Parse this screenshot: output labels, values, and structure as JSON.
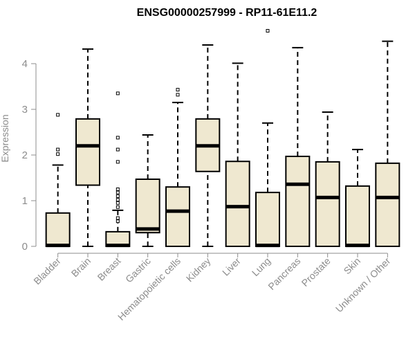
{
  "chart_data": {
    "type": "box",
    "title": "ENSG00000257999 - RP11-61E11.2",
    "xlabel": "",
    "ylabel": "Expression",
    "ylim": [
      0,
      4.7
    ],
    "yticks": [
      0,
      1,
      2,
      3,
      4
    ],
    "grid": false,
    "box_fill": "#efe8d0",
    "categories": [
      "Bladder",
      "Brain",
      "Breast",
      "Gastric",
      "Hematopoietic cells",
      "Kidney",
      "Liver",
      "Lung",
      "Pancreas",
      "Prostate",
      "Skin",
      "Unknown / Other"
    ],
    "boxes": [
      {
        "category": "Bladder",
        "min": 0,
        "q1": 0,
        "median": 0.02,
        "q3": 0.73,
        "max": 1.78,
        "outliers": [
          2.02,
          2.12,
          2.88
        ]
      },
      {
        "category": "Brain",
        "min": 0,
        "q1": 1.34,
        "median": 2.2,
        "q3": 2.79,
        "max": 4.32,
        "outliers": []
      },
      {
        "category": "Breast",
        "min": 0,
        "q1": 0,
        "median": 0.02,
        "q3": 0.32,
        "max": 0.79,
        "outliers": [
          0.55,
          0.62,
          0.86,
          0.95,
          1.02,
          1.1,
          1.18,
          1.25,
          1.85,
          2.12,
          2.38,
          3.35
        ]
      },
      {
        "category": "Gastric",
        "min": 0,
        "q1": 0.3,
        "median": 0.38,
        "q3": 1.47,
        "max": 2.44,
        "outliers": []
      },
      {
        "category": "Hematopoietic cells",
        "min": 0,
        "q1": 0,
        "median": 0.77,
        "q3": 1.3,
        "max": 3.15,
        "outliers": [
          3.32,
          3.43
        ]
      },
      {
        "category": "Kidney",
        "min": 0,
        "q1": 1.64,
        "median": 2.2,
        "q3": 2.79,
        "max": 4.41,
        "outliers": []
      },
      {
        "category": "Liver",
        "min": 0,
        "q1": 0,
        "median": 0.87,
        "q3": 1.86,
        "max": 4.01,
        "outliers": []
      },
      {
        "category": "Lung",
        "min": 0,
        "q1": 0,
        "median": 0.02,
        "q3": 1.18,
        "max": 2.7,
        "outliers": [
          4.72
        ]
      },
      {
        "category": "Pancreas",
        "min": 0,
        "q1": 0,
        "median": 1.36,
        "q3": 1.97,
        "max": 4.35,
        "outliers": []
      },
      {
        "category": "Prostate",
        "min": 0,
        "q1": 0,
        "median": 1.07,
        "q3": 1.85,
        "max": 2.94,
        "outliers": []
      },
      {
        "category": "Skin",
        "min": 0,
        "q1": 0,
        "median": 0.02,
        "q3": 1.32,
        "max": 2.12,
        "outliers": []
      },
      {
        "category": "Unknown / Other",
        "min": 0,
        "q1": 0,
        "median": 1.07,
        "q3": 1.82,
        "max": 4.49,
        "outliers": []
      }
    ]
  }
}
